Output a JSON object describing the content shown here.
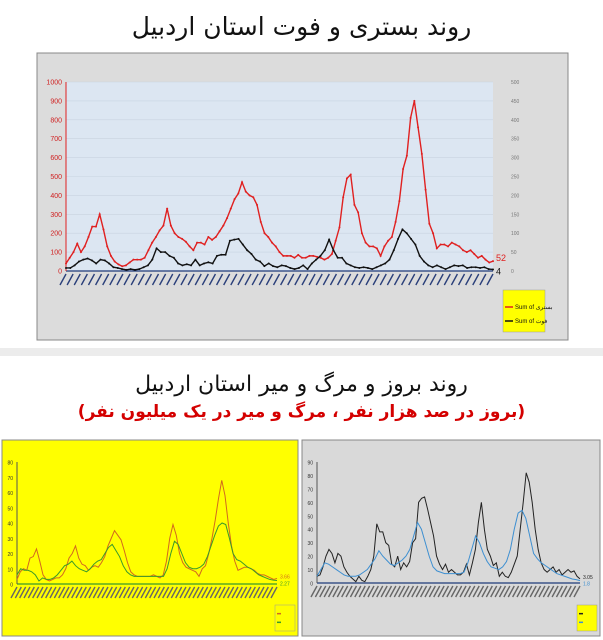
{
  "titles": {
    "top": "روند بستری و فوت استان اردبیل",
    "bottom": "روند بروز و مرگ و میر استان اردبیل",
    "bottom_sub": "(بروز در صد هزار نفر ، مرگ و میر در یک میلیون نفر)"
  },
  "chart_data": [
    {
      "type": "line",
      "panel_color": "#dcdcdc",
      "plot_color": "#dce6f2",
      "ylim": [
        0,
        1000
      ],
      "yticks": [
        "0",
        "100",
        "200",
        "300",
        "400",
        "500",
        "600",
        "700",
        "800",
        "900",
        "1000"
      ],
      "ylim_right": [
        0,
        500
      ],
      "yticks_right": [
        "0",
        "50",
        "100",
        "150",
        "200",
        "250",
        "300",
        "350",
        "400",
        "450",
        "500"
      ],
      "legend_placement": "bottom-right",
      "grid": true,
      "series": [
        {
          "name": "Sum of بستری",
          "color": "#e02020",
          "axis": "left",
          "end_label": "52",
          "values": [
            40,
            70,
            100,
            145,
            100,
            130,
            180,
            235,
            235,
            300,
            220,
            130,
            80,
            50,
            35,
            25,
            30,
            45,
            60,
            60,
            60,
            70,
            110,
            150,
            180,
            215,
            240,
            330,
            240,
            200,
            180,
            170,
            155,
            130,
            110,
            150,
            150,
            140,
            180,
            165,
            180,
            210,
            240,
            280,
            330,
            380,
            410,
            470,
            420,
            400,
            390,
            350,
            260,
            200,
            180,
            150,
            130,
            100,
            80,
            80,
            80,
            70,
            85,
            70,
            70,
            80,
            80,
            75,
            70,
            60,
            70,
            90,
            160,
            230,
            390,
            490,
            510,
            350,
            310,
            200,
            150,
            130,
            130,
            120,
            80,
            130,
            160,
            180,
            260,
            370,
            540,
            610,
            810,
            900,
            760,
            620,
            430,
            250,
            200,
            120,
            140,
            140,
            130,
            150,
            140,
            130,
            110,
            100,
            110,
            90,
            70,
            80,
            60,
            45,
            52
          ]
        },
        {
          "name": "Sum of فوت",
          "color": "#111111",
          "axis": "right",
          "end_label": "4",
          "values": [
            8,
            8,
            15,
            25,
            30,
            33,
            28,
            20,
            30,
            28,
            20,
            10,
            8,
            5,
            3,
            5,
            3,
            5,
            10,
            15,
            30,
            60,
            50,
            50,
            40,
            35,
            20,
            15,
            18,
            15,
            30,
            15,
            20,
            23,
            20,
            40,
            43,
            43,
            80,
            83,
            85,
            70,
            55,
            45,
            30,
            25,
            13,
            20,
            13,
            10,
            15,
            13,
            8,
            5,
            8,
            15,
            5,
            20,
            30,
            40,
            55,
            83,
            55,
            35,
            35,
            20,
            15,
            10,
            8,
            10,
            8,
            5,
            10,
            15,
            20,
            30,
            55,
            85,
            110,
            100,
            85,
            70,
            40,
            25,
            15,
            10,
            15,
            10,
            5,
            10,
            15,
            13,
            15,
            8,
            10,
            10,
            8,
            10,
            5,
            4
          ]
        }
      ]
    },
    {
      "type": "line",
      "panel_color": "#ffff00",
      "ylim": [
        0,
        80
      ],
      "yticks": [
        "0",
        "10",
        "20",
        "30",
        "40",
        "50",
        "60",
        "70",
        "80"
      ],
      "legend_placement": "bottom-right",
      "series": [
        {
          "color": "#d2691e",
          "end_label": "3.66",
          "values": [
            3,
            8,
            10,
            9,
            17,
            18,
            23,
            15,
            6,
            3,
            2,
            3,
            4,
            4,
            6,
            10,
            17,
            20,
            25,
            17,
            13,
            12,
            9,
            11,
            12,
            11,
            14,
            18,
            25,
            30,
            35,
            32,
            29,
            22,
            14,
            8,
            6,
            5,
            5,
            5,
            5,
            5,
            6,
            5,
            4,
            6,
            15,
            30,
            39,
            32,
            20,
            14,
            11,
            10,
            9,
            8,
            5,
            10,
            12,
            20,
            30,
            42,
            56,
            68,
            58,
            40,
            25,
            15,
            9,
            10,
            11,
            11,
            10,
            9,
            7,
            6,
            6,
            5,
            4,
            3,
            3.66
          ]
        },
        {
          "color": "#3a9a2a",
          "end_label": "2.27",
          "values": [
            6,
            10,
            9,
            9,
            8,
            6,
            2,
            4,
            3,
            3,
            4,
            6,
            9,
            12,
            13,
            15,
            12,
            10,
            9,
            8,
            10,
            13,
            15,
            16,
            20,
            24,
            26,
            22,
            18,
            12,
            8,
            6,
            5,
            5,
            5,
            5,
            5,
            5,
            5,
            5,
            5,
            10,
            20,
            28,
            26,
            20,
            14,
            11,
            10,
            10,
            11,
            13,
            18,
            25,
            32,
            38,
            40,
            39,
            30,
            20,
            16,
            15,
            13,
            11,
            10,
            8,
            6,
            5,
            4,
            3,
            2.5,
            2.27
          ]
        }
      ]
    },
    {
      "type": "line",
      "panel_color": "#d9d9d9",
      "ylim": [
        0,
        90
      ],
      "yticks": [
        "0",
        "10",
        "20",
        "30",
        "40",
        "50",
        "60",
        "70",
        "80",
        "90"
      ],
      "legend_placement": "bottom-right",
      "series": [
        {
          "color": "#222222",
          "end_label": "3.05",
          "values": [
            5,
            6,
            12,
            20,
            25,
            22,
            15,
            22,
            20,
            12,
            8,
            5,
            3,
            1,
            5,
            2,
            1,
            5,
            10,
            20,
            44,
            38,
            38,
            30,
            28,
            14,
            12,
            20,
            10,
            15,
            12,
            16,
            30,
            33,
            60,
            63,
            64,
            55,
            45,
            35,
            20,
            14,
            10,
            14,
            8,
            10,
            8,
            6,
            6,
            8,
            14,
            6,
            15,
            25,
            45,
            60,
            40,
            25,
            20,
            13,
            15,
            5,
            8,
            5,
            4,
            8,
            14,
            20,
            40,
            60,
            82,
            75,
            60,
            40,
            25,
            15,
            10,
            8,
            10,
            12,
            8,
            10,
            6,
            8,
            10,
            8,
            9,
            5,
            3.05
          ]
        },
        {
          "color": "#3d8fd1",
          "end_label": "1.8",
          "values": [
            5,
            10,
            15,
            14,
            12,
            10,
            8,
            6,
            5,
            5,
            5,
            6,
            8,
            10,
            14,
            18,
            24,
            20,
            17,
            14,
            13,
            15,
            17,
            20,
            25,
            35,
            45,
            40,
            30,
            20,
            12,
            9,
            8,
            7,
            7,
            7,
            7,
            7,
            8,
            15,
            25,
            35,
            30,
            22,
            16,
            12,
            11,
            10,
            12,
            16,
            25,
            40,
            52,
            54,
            48,
            35,
            22,
            18,
            15,
            13,
            11,
            9,
            7,
            6,
            5,
            4,
            3,
            2.5,
            1.8
          ]
        }
      ]
    }
  ]
}
